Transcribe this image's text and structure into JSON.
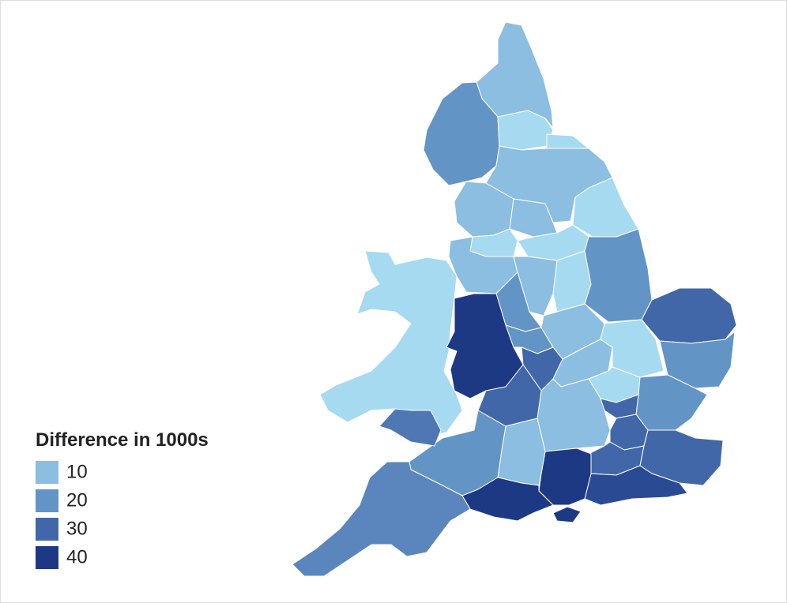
{
  "legend": {
    "title": "Difference in 1000s",
    "items": [
      {
        "label": "10",
        "color": "#8bbee0"
      },
      {
        "label": "20",
        "color": "#6394c6"
      },
      {
        "label": "30",
        "color": "#4267a8"
      },
      {
        "label": "40",
        "color": "#1e3984"
      }
    ]
  }
}
